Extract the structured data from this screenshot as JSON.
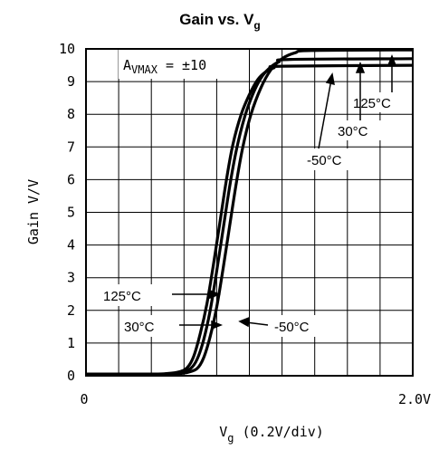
{
  "chart_data": {
    "type": "line",
    "title": "Gain vs. V",
    "title_sub": "g",
    "xlabel": "V",
    "xlabel_sub": "g",
    "xlabel_rest": " (0.2V/div)",
    "ylabel": "Gain V/V",
    "xlim": [
      0,
      2.0
    ],
    "ylim": [
      0,
      10
    ],
    "x_tick_labels": [
      "0",
      "2.0V"
    ],
    "y_ticks": [
      0,
      1,
      2,
      3,
      4,
      5,
      6,
      7,
      8,
      9,
      10
    ],
    "y_tick_labels": [
      "0",
      "1",
      "2",
      "3",
      "4",
      "5",
      "6",
      "7",
      "8",
      "9",
      "10"
    ],
    "grid": true,
    "annotation_main": "A",
    "annotation_sub": "VMAX",
    "annotation_rest": " = ±10",
    "series": [
      {
        "name": "125°C",
        "points": [
          [
            0,
            0.05
          ],
          [
            0.4,
            0.05
          ],
          [
            0.5,
            0.07
          ],
          [
            0.57,
            0.12
          ],
          [
            0.62,
            0.25
          ],
          [
            0.66,
            0.6
          ],
          [
            0.7,
            1.3
          ],
          [
            0.74,
            2.2
          ],
          [
            0.78,
            3.4
          ],
          [
            0.82,
            4.7
          ],
          [
            0.86,
            6.0
          ],
          [
            0.9,
            7.1
          ],
          [
            0.95,
            8.0
          ],
          [
            1.0,
            8.6
          ],
          [
            1.05,
            9.05
          ],
          [
            1.1,
            9.3
          ],
          [
            1.15,
            9.42
          ],
          [
            1.2,
            9.47
          ],
          [
            2.0,
            9.5
          ]
        ]
      },
      {
        "name": "30°C",
        "points": [
          [
            0,
            0.05
          ],
          [
            0.4,
            0.05
          ],
          [
            0.5,
            0.06
          ],
          [
            0.58,
            0.1
          ],
          [
            0.64,
            0.22
          ],
          [
            0.68,
            0.5
          ],
          [
            0.72,
            1.1
          ],
          [
            0.76,
            2.0
          ],
          [
            0.8,
            3.2
          ],
          [
            0.84,
            4.5
          ],
          [
            0.88,
            5.8
          ],
          [
            0.92,
            6.9
          ],
          [
            0.97,
            7.9
          ],
          [
            1.02,
            8.6
          ],
          [
            1.07,
            9.1
          ],
          [
            1.12,
            9.4
          ],
          [
            1.18,
            9.6
          ],
          [
            1.25,
            9.68
          ],
          [
            2.0,
            9.7
          ]
        ]
      },
      {
        "name": "-50°C",
        "points": [
          [
            0,
            0.05
          ],
          [
            0.45,
            0.05
          ],
          [
            0.55,
            0.06
          ],
          [
            0.62,
            0.1
          ],
          [
            0.68,
            0.22
          ],
          [
            0.72,
            0.55
          ],
          [
            0.76,
            1.2
          ],
          [
            0.8,
            2.1
          ],
          [
            0.84,
            3.3
          ],
          [
            0.88,
            4.6
          ],
          [
            0.92,
            5.9
          ],
          [
            0.96,
            7.0
          ],
          [
            1.01,
            8.0
          ],
          [
            1.07,
            8.8
          ],
          [
            1.13,
            9.35
          ],
          [
            1.2,
            9.7
          ],
          [
            1.28,
            9.88
          ],
          [
            1.38,
            9.95
          ],
          [
            2.0,
            9.97
          ]
        ]
      }
    ],
    "labels": [
      {
        "text": "125°C"
      },
      {
        "text": "30°C"
      },
      {
        "text": "-50°C"
      },
      {
        "text": "125°C"
      },
      {
        "text": "30°C"
      },
      {
        "text": "-50°C"
      }
    ]
  }
}
